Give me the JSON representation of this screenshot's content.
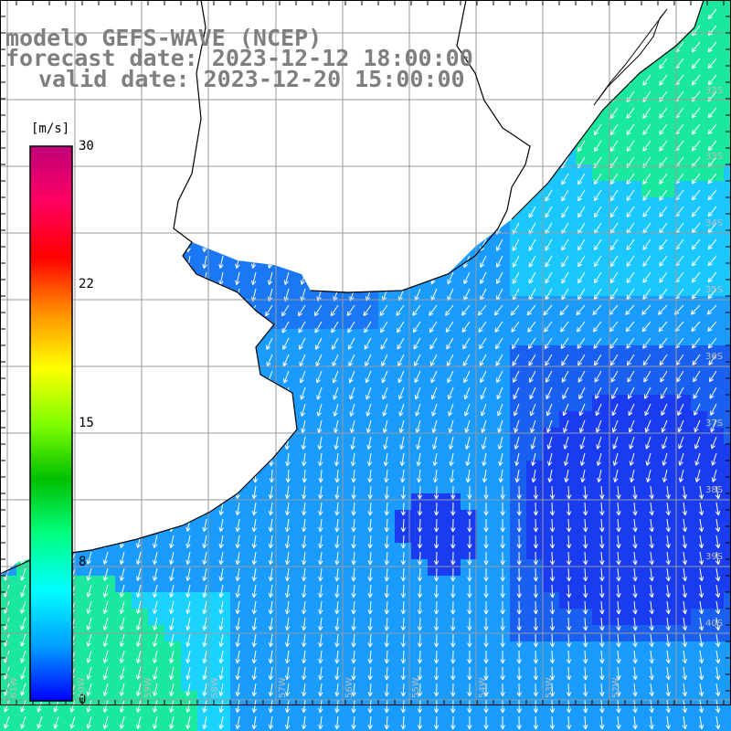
{
  "title": {
    "line1": "modelo GEFS-WAVE (NCEP)",
    "line2": "forecast date: 2023-12-12 18:00:00",
    "line3": "valid date: 2023-12-20 15:00:00"
  },
  "colorbar": {
    "unit": "[m/s]",
    "ticks": [
      "30",
      "22",
      "15",
      "8",
      "0"
    ],
    "tick_values": [
      30,
      22,
      15,
      8,
      0
    ],
    "min": 0,
    "max": 30,
    "colors": [
      "#0000ff",
      "#00a0ff",
      "#00ffff",
      "#00ff80",
      "#00c000",
      "#80ff00",
      "#ffff00",
      "#ff9000",
      "#ff0000",
      "#ff0060",
      "#c0007a"
    ]
  },
  "map": {
    "variable": "wind speed / direction",
    "lat_labels": [
      "32S",
      "33S",
      "34S",
      "35S",
      "36S",
      "37S",
      "38S",
      "39S",
      "40S"
    ],
    "lon_labels": [
      "61W",
      "60W",
      "59W",
      "58W",
      "57W",
      "56W",
      "55W",
      "54W",
      "53W",
      "52W"
    ],
    "colors": {
      "land": "#ffffff",
      "coast": "#000000",
      "grid": "#9a9a9a",
      "arrow": "#ffffff",
      "ocean_dark": "#1a3cf0",
      "ocean_mid": "#1a9cff",
      "ocean_light": "#1ad4ff",
      "ocean_green": "#1ae89c"
    }
  }
}
